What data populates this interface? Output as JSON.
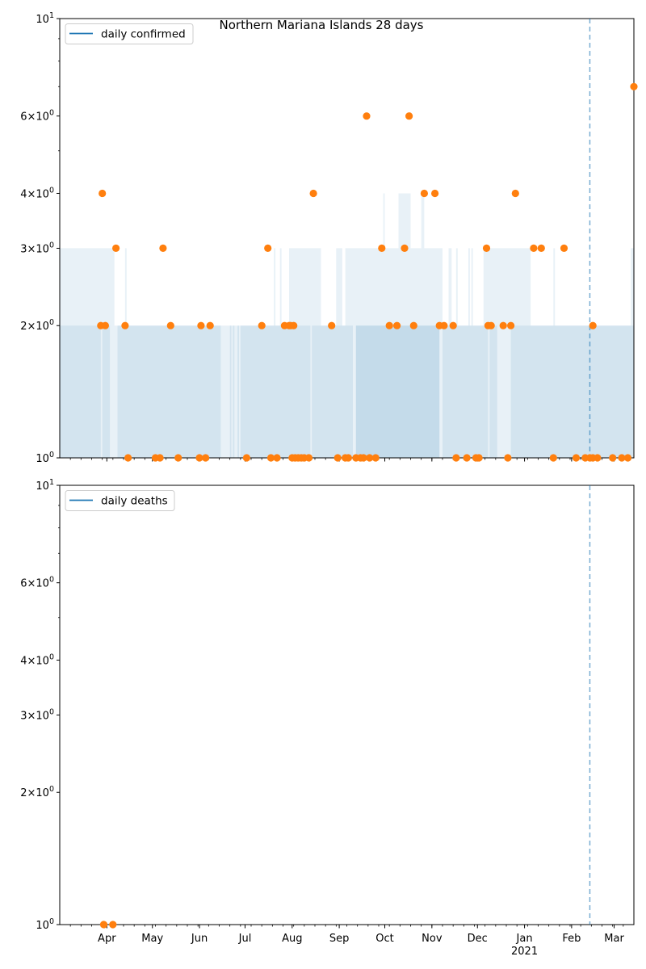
{
  "chart_data": [
    {
      "type": "scatter",
      "title": "Northern Mariana Islands 28 days",
      "legend": {
        "label": "daily confirmed",
        "position": "top-left"
      },
      "y_scale": "log",
      "ylim": [
        1,
        10
      ],
      "y_ticks": [
        {
          "value": 1,
          "label": "10^0"
        },
        {
          "value": 2,
          "label": "2×10^0"
        },
        {
          "value": 3,
          "label": "3×10^0"
        },
        {
          "value": 4,
          "label": "4×10^0"
        },
        {
          "value": 6,
          "label": "6×10^0"
        },
        {
          "value": 10,
          "label": "10^1"
        }
      ],
      "xlim": [
        "2020-03-01",
        "2021-03-14"
      ],
      "vline_date": "2021-02-13",
      "colors": {
        "line": "#1f77b4",
        "points": "#ff7f0e",
        "band": "#1f77b4",
        "vline": "#1f77b4"
      },
      "points": [
        [
          "2020-03-28",
          2
        ],
        [
          "2020-03-29",
          4
        ],
        [
          "2020-03-31",
          2
        ],
        [
          "2020-04-07",
          3
        ],
        [
          "2020-04-13",
          2
        ],
        [
          "2020-04-15",
          1
        ],
        [
          "2020-05-03",
          1
        ],
        [
          "2020-05-06",
          1
        ],
        [
          "2020-05-08",
          3
        ],
        [
          "2020-05-13",
          2
        ],
        [
          "2020-05-18",
          1
        ],
        [
          "2020-06-01",
          1
        ],
        [
          "2020-06-02",
          2
        ],
        [
          "2020-06-05",
          1
        ],
        [
          "2020-06-08",
          2
        ],
        [
          "2020-07-02",
          1
        ],
        [
          "2020-07-12",
          2
        ],
        [
          "2020-07-16",
          3
        ],
        [
          "2020-07-18",
          1
        ],
        [
          "2020-07-22",
          1
        ],
        [
          "2020-07-27",
          2
        ],
        [
          "2020-07-30",
          2
        ],
        [
          "2020-07-31",
          2
        ],
        [
          "2020-08-01",
          1
        ],
        [
          "2020-08-02",
          2
        ],
        [
          "2020-08-03",
          1
        ],
        [
          "2020-08-05",
          1
        ],
        [
          "2020-08-07",
          1
        ],
        [
          "2020-08-09",
          1
        ],
        [
          "2020-08-12",
          1
        ],
        [
          "2020-08-15",
          4
        ],
        [
          "2020-08-27",
          2
        ],
        [
          "2020-08-31",
          1
        ],
        [
          "2020-09-05",
          1
        ],
        [
          "2020-09-07",
          1
        ],
        [
          "2020-09-12",
          1
        ],
        [
          "2020-09-15",
          1
        ],
        [
          "2020-09-17",
          1
        ],
        [
          "2020-09-19",
          6
        ],
        [
          "2020-09-21",
          1
        ],
        [
          "2020-09-25",
          1
        ],
        [
          "2020-09-29",
          3
        ],
        [
          "2020-10-04",
          2
        ],
        [
          "2020-10-09",
          2
        ],
        [
          "2020-10-14",
          3
        ],
        [
          "2020-10-17",
          6
        ],
        [
          "2020-10-20",
          2
        ],
        [
          "2020-10-27",
          4
        ],
        [
          "2020-11-03",
          4
        ],
        [
          "2020-11-06",
          2
        ],
        [
          "2020-11-09",
          2
        ],
        [
          "2020-11-15",
          2
        ],
        [
          "2020-11-17",
          1
        ],
        [
          "2020-11-24",
          1
        ],
        [
          "2020-11-30",
          1
        ],
        [
          "2020-12-02",
          1
        ],
        [
          "2020-12-07",
          3
        ],
        [
          "2020-12-08",
          2
        ],
        [
          "2020-12-10",
          2
        ],
        [
          "2020-12-18",
          2
        ],
        [
          "2020-12-21",
          1
        ],
        [
          "2020-12-23",
          2
        ],
        [
          "2020-12-26",
          4
        ],
        [
          "2021-01-07",
          3
        ],
        [
          "2021-01-12",
          3
        ],
        [
          "2021-01-20",
          1
        ],
        [
          "2021-01-27",
          3
        ],
        [
          "2021-02-04",
          1
        ],
        [
          "2021-02-10",
          1
        ],
        [
          "2021-02-13",
          1
        ],
        [
          "2021-02-15",
          2
        ],
        [
          "2021-02-15",
          1
        ],
        [
          "2021-02-18",
          1
        ],
        [
          "2021-02-28",
          1
        ],
        [
          "2021-03-06",
          1
        ],
        [
          "2021-03-10",
          1
        ],
        [
          "2021-03-14",
          7
        ]
      ]
    },
    {
      "type": "scatter",
      "legend": {
        "label": "daily deaths",
        "position": "top-left"
      },
      "y_scale": "log",
      "ylim": [
        1,
        10
      ],
      "y_ticks": [
        {
          "value": 1,
          "label": "10^0"
        },
        {
          "value": 2,
          "label": "2×10^0"
        },
        {
          "value": 3,
          "label": "3×10^0"
        },
        {
          "value": 4,
          "label": "4×10^0"
        },
        {
          "value": 6,
          "label": "6×10^0"
        },
        {
          "value": 10,
          "label": "10^1"
        }
      ],
      "xlim": [
        "2020-03-01",
        "2021-03-14"
      ],
      "vline_date": "2021-02-13",
      "colors": {
        "line": "#1f77b4",
        "points": "#ff7f0e",
        "vline": "#1f77b4"
      },
      "points": [
        [
          "2020-03-30",
          1
        ],
        [
          "2020-04-05",
          1
        ]
      ],
      "x_ticks": [
        {
          "date": "2020-04-01",
          "label": "Apr"
        },
        {
          "date": "2020-05-01",
          "label": "May"
        },
        {
          "date": "2020-06-01",
          "label": "Jun"
        },
        {
          "date": "2020-07-01",
          "label": "Jul"
        },
        {
          "date": "2020-08-01",
          "label": "Aug"
        },
        {
          "date": "2020-09-01",
          "label": "Sep"
        },
        {
          "date": "2020-10-01",
          "label": "Oct"
        },
        {
          "date": "2020-11-01",
          "label": "Nov"
        },
        {
          "date": "2020-12-01",
          "label": "Dec"
        },
        {
          "date": "2021-01-01",
          "label": "Jan",
          "sublabel": "2021"
        },
        {
          "date": "2021-02-01",
          "label": "Feb"
        },
        {
          "date": "2021-03-01",
          "label": "Mar"
        }
      ]
    }
  ]
}
